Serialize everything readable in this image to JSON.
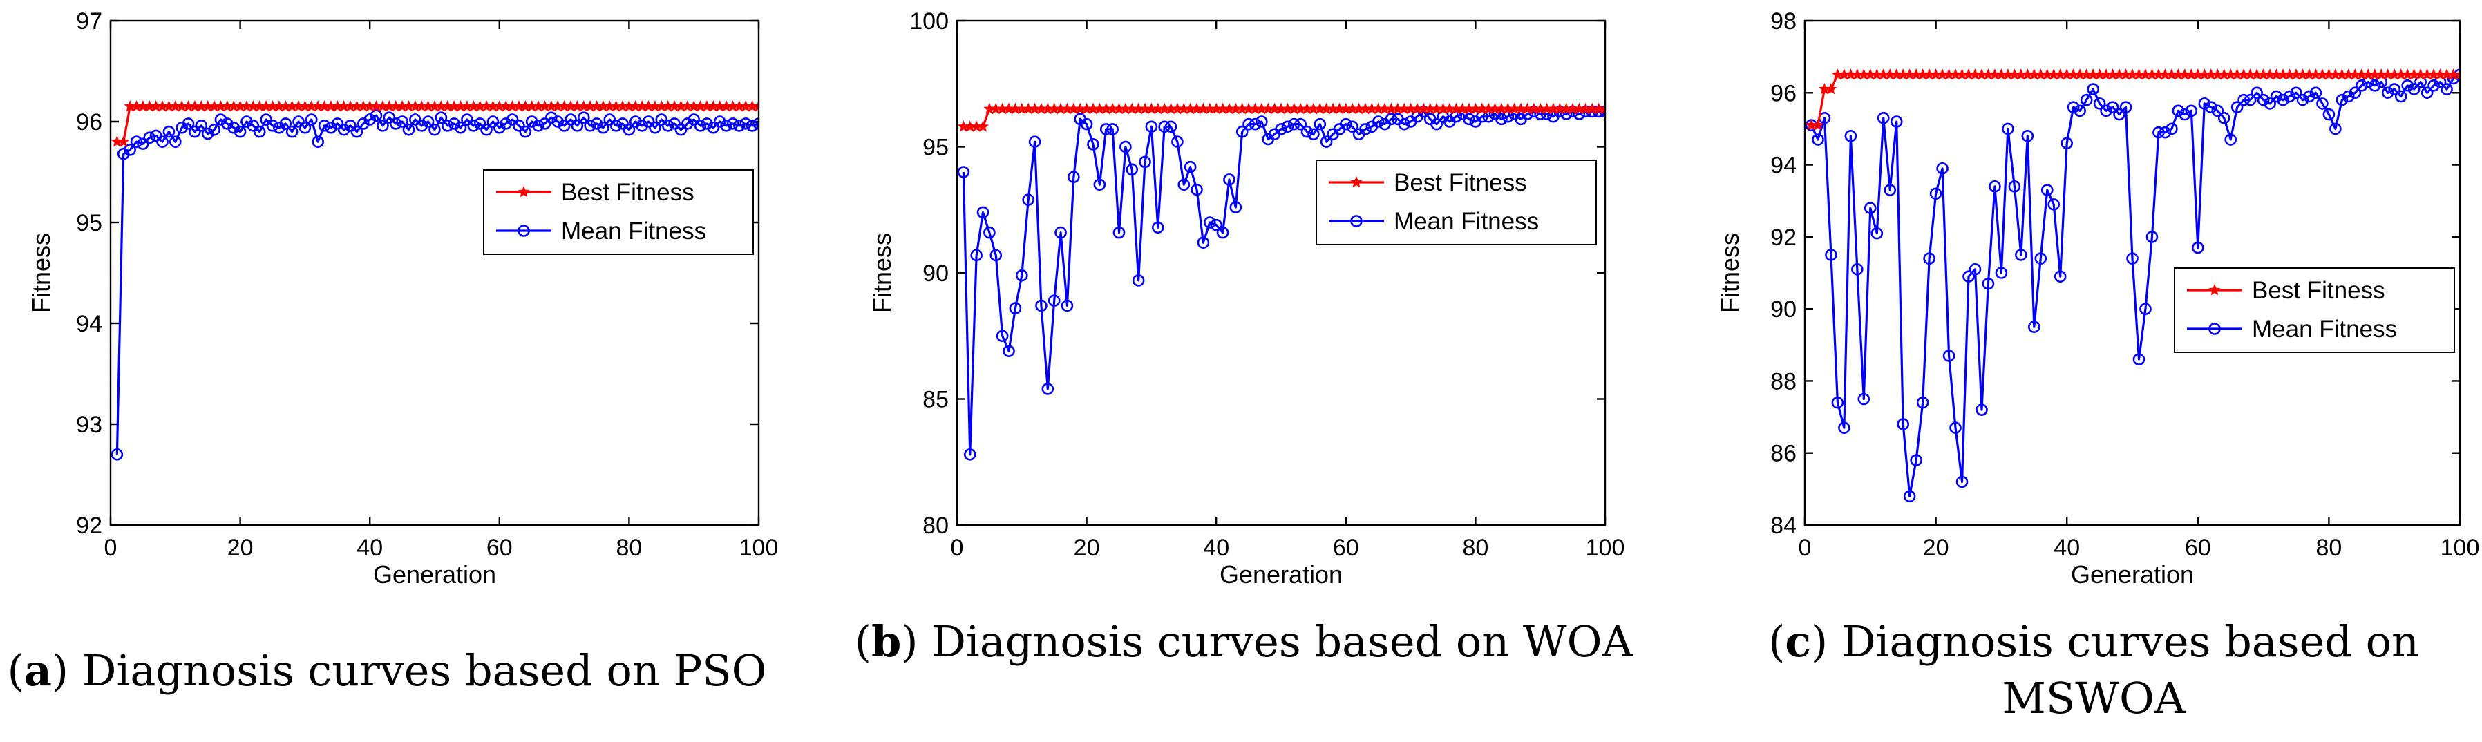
{
  "chart_data": [
    {
      "type": "line",
      "panel_label": "a",
      "caption": "Diagnosis curves based on PSO",
      "xlabel": "Generation",
      "ylabel": "Fitness",
      "xlim": [
        0,
        100
      ],
      "ylim": [
        92,
        97
      ],
      "xticks": [
        0,
        20,
        40,
        60,
        80,
        100
      ],
      "yticks": [
        92,
        93,
        94,
        95,
        96,
        97
      ],
      "legend_position": "center-right",
      "series": [
        {
          "name": "Best Fitness",
          "color": "#ff0000",
          "marker": "star",
          "values": [
            95.8,
            95.8,
            96.15,
            96.15,
            96.15,
            96.15,
            96.15,
            96.15,
            96.15,
            96.15,
            96.15,
            96.15,
            96.15,
            96.15,
            96.15,
            96.15,
            96.15,
            96.15,
            96.15,
            96.15,
            96.15,
            96.15,
            96.15,
            96.15,
            96.15,
            96.15,
            96.15,
            96.15,
            96.15,
            96.15,
            96.15,
            96.15,
            96.15,
            96.15,
            96.15,
            96.15,
            96.15,
            96.15,
            96.15,
            96.15,
            96.15,
            96.15,
            96.15,
            96.15,
            96.15,
            96.15,
            96.15,
            96.15,
            96.15,
            96.15,
            96.15,
            96.15,
            96.15,
            96.15,
            96.15,
            96.15,
            96.15,
            96.15,
            96.15,
            96.15,
            96.15,
            96.15,
            96.15,
            96.15,
            96.15,
            96.15,
            96.15,
            96.15,
            96.15,
            96.15,
            96.15,
            96.15,
            96.15,
            96.15,
            96.15,
            96.15,
            96.15,
            96.15,
            96.15,
            96.15,
            96.15,
            96.15,
            96.15,
            96.15,
            96.15,
            96.15,
            96.15,
            96.15,
            96.15,
            96.15,
            96.15,
            96.15,
            96.15,
            96.15,
            96.15,
            96.15,
            96.15,
            96.15,
            96.15,
            96.15
          ]
        },
        {
          "name": "Mean Fitness",
          "color": "#0000ff",
          "marker": "circle",
          "values": [
            92.7,
            95.68,
            95.72,
            95.8,
            95.78,
            95.84,
            95.86,
            95.8,
            95.9,
            95.8,
            95.94,
            95.98,
            95.9,
            95.96,
            95.88,
            95.92,
            96.02,
            95.98,
            95.94,
            95.9,
            96.0,
            95.96,
            95.9,
            96.02,
            95.96,
            95.94,
            95.98,
            95.9,
            96.0,
            95.94,
            96.02,
            95.8,
            95.96,
            95.94,
            95.98,
            95.92,
            95.96,
            95.9,
            95.98,
            96.02,
            96.06,
            95.96,
            96.04,
            95.98,
            96.0,
            95.92,
            96.02,
            95.96,
            96.0,
            95.92,
            96.04,
            95.96,
            95.98,
            95.94,
            96.02,
            95.96,
            95.98,
            95.92,
            96.0,
            95.94,
            95.98,
            96.02,
            95.96,
            95.9,
            96.0,
            95.96,
            95.98,
            96.04,
            96.0,
            95.96,
            96.02,
            95.96,
            96.04,
            95.96,
            95.98,
            95.94,
            96.02,
            95.96,
            95.98,
            95.92,
            96.0,
            95.96,
            96.0,
            95.94,
            96.02,
            95.96,
            95.98,
            95.92,
            95.98,
            96.02,
            95.96,
            95.98,
            95.94,
            96.0,
            95.96,
            95.98,
            95.96,
            95.98,
            95.96,
            95.98
          ]
        }
      ]
    },
    {
      "type": "line",
      "panel_label": "b",
      "caption": "Diagnosis curves based on WOA",
      "xlabel": "Generation",
      "ylabel": "Fitness",
      "xlim": [
        0,
        100
      ],
      "ylim": [
        80,
        100
      ],
      "xticks": [
        0,
        20,
        40,
        60,
        80,
        100
      ],
      "yticks": [
        80,
        85,
        90,
        95,
        100
      ],
      "legend_position": "center-right",
      "series": [
        {
          "name": "Best Fitness",
          "color": "#ff0000",
          "marker": "star",
          "values": [
            95.8,
            95.8,
            95.8,
            95.8,
            96.5,
            96.5,
            96.5,
            96.5,
            96.5,
            96.5,
            96.5,
            96.5,
            96.5,
            96.5,
            96.5,
            96.5,
            96.5,
            96.5,
            96.5,
            96.5,
            96.5,
            96.5,
            96.5,
            96.5,
            96.5,
            96.5,
            96.5,
            96.5,
            96.5,
            96.5,
            96.5,
            96.5,
            96.5,
            96.5,
            96.5,
            96.5,
            96.5,
            96.5,
            96.5,
            96.5,
            96.5,
            96.5,
            96.5,
            96.5,
            96.5,
            96.5,
            96.5,
            96.5,
            96.5,
            96.5,
            96.5,
            96.5,
            96.5,
            96.5,
            96.5,
            96.5,
            96.5,
            96.5,
            96.5,
            96.5,
            96.5,
            96.5,
            96.5,
            96.5,
            96.5,
            96.5,
            96.5,
            96.5,
            96.5,
            96.5,
            96.5,
            96.5,
            96.5,
            96.5,
            96.5,
            96.5,
            96.5,
            96.5,
            96.5,
            96.5,
            96.5,
            96.5,
            96.5,
            96.5,
            96.5,
            96.5,
            96.5,
            96.5,
            96.5,
            96.5,
            96.5,
            96.5,
            96.5,
            96.5,
            96.5,
            96.5,
            96.5,
            96.5,
            96.5,
            96.5
          ]
        },
        {
          "name": "Mean Fitness",
          "color": "#0000ff",
          "marker": "circle",
          "values": [
            94.0,
            82.8,
            90.7,
            92.4,
            91.6,
            90.7,
            87.5,
            86.9,
            88.6,
            89.9,
            92.9,
            95.2,
            88.7,
            85.4,
            88.9,
            91.6,
            88.7,
            93.8,
            96.1,
            95.9,
            95.1,
            93.5,
            95.7,
            95.7,
            91.6,
            95.0,
            94.1,
            89.7,
            94.4,
            95.8,
            91.8,
            95.8,
            95.8,
            95.2,
            93.5,
            94.2,
            93.3,
            91.2,
            92.0,
            91.9,
            91.6,
            93.7,
            92.6,
            95.6,
            95.9,
            95.9,
            96.0,
            95.3,
            95.5,
            95.7,
            95.8,
            95.9,
            95.9,
            95.6,
            95.5,
            95.9,
            95.2,
            95.5,
            95.7,
            95.9,
            95.8,
            95.5,
            95.7,
            95.8,
            96.0,
            95.9,
            96.1,
            96.1,
            95.9,
            96.0,
            96.2,
            96.4,
            96.1,
            95.9,
            96.2,
            96.0,
            96.2,
            96.3,
            96.1,
            96.0,
            96.2,
            96.2,
            96.3,
            96.1,
            96.2,
            96.3,
            96.1,
            96.3,
            96.4,
            96.3,
            96.3,
            96.2,
            96.4,
            96.3,
            96.4,
            96.3,
            96.4,
            96.4,
            96.4,
            96.4
          ]
        }
      ]
    },
    {
      "type": "line",
      "panel_label": "c",
      "caption": "Diagnosis curves based on MSWOA",
      "xlabel": "Generation",
      "ylabel": "Fitness",
      "xlim": [
        0,
        100
      ],
      "ylim": [
        84,
        98
      ],
      "xticks": [
        0,
        20,
        40,
        60,
        80,
        100
      ],
      "yticks": [
        84,
        86,
        88,
        90,
        92,
        94,
        96,
        98
      ],
      "legend_position": "center-right",
      "series": [
        {
          "name": "Best Fitness",
          "color": "#ff0000",
          "marker": "star",
          "values": [
            95.1,
            95.1,
            96.1,
            96.1,
            96.5,
            96.5,
            96.5,
            96.5,
            96.5,
            96.5,
            96.5,
            96.5,
            96.5,
            96.5,
            96.5,
            96.5,
            96.5,
            96.5,
            96.5,
            96.5,
            96.5,
            96.5,
            96.5,
            96.5,
            96.5,
            96.5,
            96.5,
            96.5,
            96.5,
            96.5,
            96.5,
            96.5,
            96.5,
            96.5,
            96.5,
            96.5,
            96.5,
            96.5,
            96.5,
            96.5,
            96.5,
            96.5,
            96.5,
            96.5,
            96.5,
            96.5,
            96.5,
            96.5,
            96.5,
            96.5,
            96.5,
            96.5,
            96.5,
            96.5,
            96.5,
            96.5,
            96.5,
            96.5,
            96.5,
            96.5,
            96.5,
            96.5,
            96.5,
            96.5,
            96.5,
            96.5,
            96.5,
            96.5,
            96.5,
            96.5,
            96.5,
            96.5,
            96.5,
            96.5,
            96.5,
            96.5,
            96.5,
            96.5,
            96.5,
            96.5,
            96.5,
            96.5,
            96.5,
            96.5,
            96.5,
            96.5,
            96.5,
            96.5,
            96.5,
            96.5,
            96.5,
            96.5,
            96.5,
            96.5,
            96.5,
            96.5,
            96.5,
            96.5,
            96.5,
            96.5
          ]
        },
        {
          "name": "Mean Fitness",
          "color": "#0000ff",
          "marker": "circle",
          "values": [
            95.1,
            94.7,
            95.3,
            91.5,
            87.4,
            86.7,
            94.8,
            91.1,
            87.5,
            92.8,
            92.1,
            95.3,
            93.3,
            95.2,
            86.8,
            84.8,
            85.8,
            87.4,
            91.4,
            93.2,
            93.9,
            88.7,
            86.7,
            85.2,
            90.9,
            91.1,
            87.2,
            90.7,
            93.4,
            91.0,
            95.0,
            93.4,
            91.5,
            94.8,
            89.5,
            91.4,
            93.3,
            92.9,
            90.9,
            94.6,
            95.6,
            95.5,
            95.8,
            96.1,
            95.7,
            95.5,
            95.6,
            95.4,
            95.6,
            91.4,
            88.6,
            90.0,
            92.0,
            94.9,
            94.9,
            95.0,
            95.5,
            95.4,
            95.5,
            91.7,
            95.7,
            95.6,
            95.5,
            95.3,
            94.7,
            95.6,
            95.8,
            95.8,
            96.0,
            95.8,
            95.7,
            95.9,
            95.8,
            95.9,
            96.0,
            95.8,
            95.9,
            96.0,
            95.7,
            95.4,
            95.0,
            95.8,
            95.9,
            96.0,
            96.2,
            96.3,
            96.2,
            96.3,
            96.0,
            96.1,
            95.9,
            96.2,
            96.1,
            96.3,
            96.0,
            96.2,
            96.3,
            96.1,
            96.4,
            96.5
          ]
        }
      ]
    }
  ]
}
